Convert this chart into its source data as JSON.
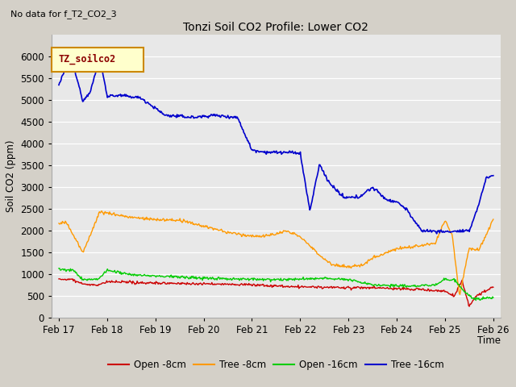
{
  "title": "Tonzi Soil CO2 Profile: Lower CO2",
  "subtitle": "No data for f_T2_CO2_3",
  "ylabel": "Soil CO2 (ppm)",
  "xlabel": "Time",
  "legend_label": "TZ_soilco2",
  "ylim": [
    0,
    6500
  ],
  "yticks": [
    0,
    500,
    1000,
    1500,
    2000,
    2500,
    3000,
    3500,
    4000,
    4500,
    5000,
    5500,
    6000
  ],
  "fig_facecolor": "#d4d0c8",
  "plot_facecolor": "#e8e8e8",
  "series": {
    "open_8cm": {
      "color": "#cc0000",
      "label": "Open -8cm"
    },
    "tree_8cm": {
      "color": "#ff9900",
      "label": "Tree -8cm"
    },
    "open_16cm": {
      "color": "#00cc00",
      "label": "Open -16cm"
    },
    "tree_16cm": {
      "color": "#0000cc",
      "label": "Tree -16cm"
    }
  },
  "xticklabels": [
    "Feb 17",
    "Feb 18",
    "Feb 19",
    "Feb 20",
    "Feb 21",
    "Feb 22",
    "Feb 23",
    "Feb 24",
    "Feb 25",
    "Feb 26"
  ],
  "xtick_positions": [
    0,
    1,
    2,
    3,
    4,
    5,
    6,
    7,
    8,
    9
  ]
}
